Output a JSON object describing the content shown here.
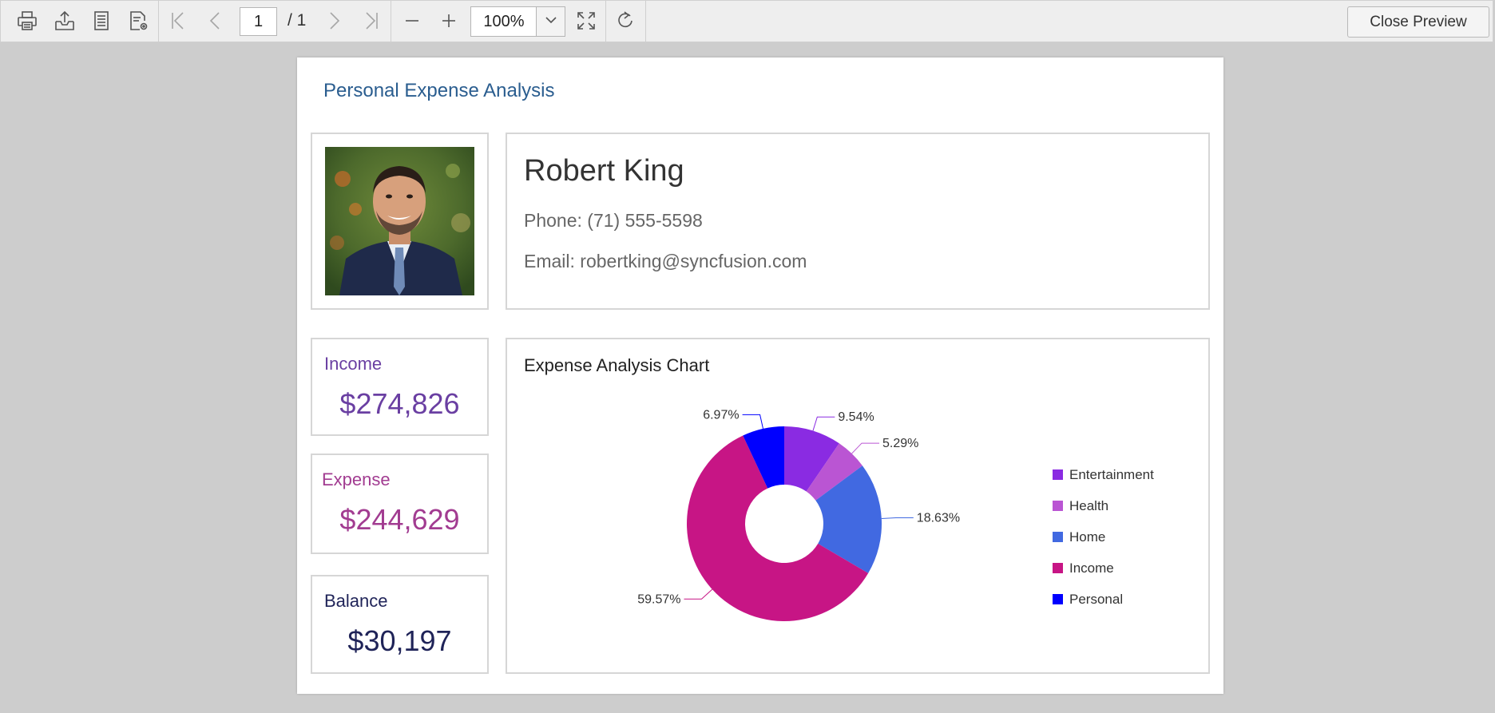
{
  "toolbar": {
    "page_number": "1",
    "page_total": "/ 1",
    "zoom": "100%",
    "close_label": "Close Preview",
    "icons": [
      "print-icon",
      "export-icon",
      "page-setup-icon",
      "page-settings-icon",
      "first-page-icon",
      "previous-page-icon",
      "next-page-icon",
      "last-page-icon",
      "zoom-out-icon",
      "zoom-in-icon",
      "chevron-down-icon",
      "fit-page-icon",
      "refresh-icon"
    ]
  },
  "report": {
    "title": "Personal Expense Analysis",
    "person": {
      "name": "Robert King",
      "phone": "Phone: (71) 555-5598",
      "email": "Email: robertking@syncfusion.com"
    },
    "stats": {
      "income_label": "Income",
      "income_value": "$274,826",
      "income_color": "#6a3fa2",
      "expense_label": "Expense",
      "expense_value": "$244,629",
      "expense_color": "#a23c91",
      "balance_label": "Balance",
      "balance_value": "$30,197",
      "balance_color": "#1f2358"
    }
  },
  "chart_data": {
    "type": "pie",
    "donut": true,
    "title": "Expense Analysis Chart",
    "legend_position": "right",
    "series": [
      {
        "name": "Entertainment",
        "value": 9.54,
        "label": "9.54%",
        "color": "#8a2be2"
      },
      {
        "name": "Health",
        "value": 5.29,
        "label": "5.29%",
        "color": "#ba55d3"
      },
      {
        "name": "Home",
        "value": 18.63,
        "label": "18.63%",
        "color": "#4169e1"
      },
      {
        "name": "Income",
        "value": 59.57,
        "label": "59.57%",
        "color": "#c71585"
      },
      {
        "name": "Personal",
        "value": 6.97,
        "label": "6.97%",
        "color": "#0000ff"
      }
    ]
  }
}
